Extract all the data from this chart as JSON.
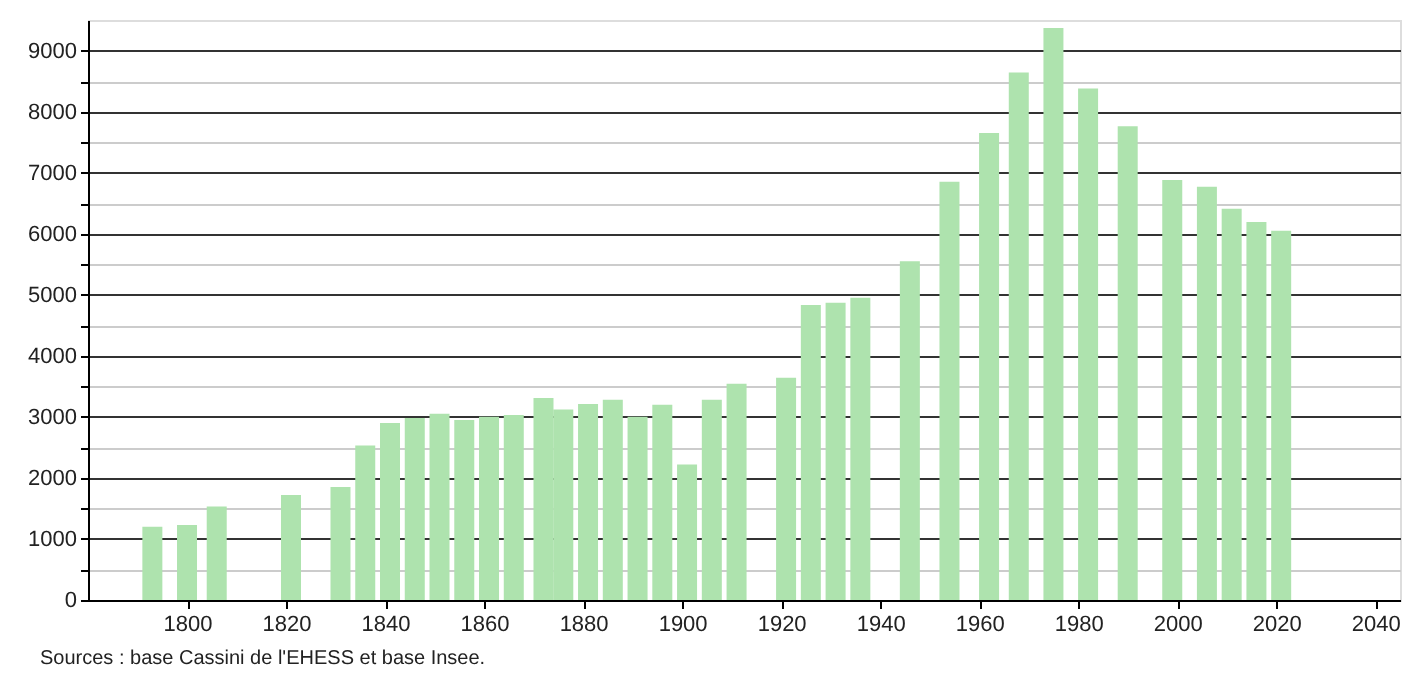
{
  "chart_data": {
    "type": "bar",
    "x": [
      1793,
      1800,
      1806,
      1821,
      1831,
      1836,
      1841,
      1846,
      1851,
      1856,
      1861,
      1866,
      1872,
      1876,
      1881,
      1886,
      1891,
      1896,
      1901,
      1906,
      1911,
      1921,
      1926,
      1931,
      1936,
      1946,
      1954,
      1962,
      1968,
      1975,
      1982,
      1990,
      1999,
      2006,
      2011,
      2016,
      2021
    ],
    "values": [
      1200,
      1230,
      1530,
      1720,
      1850,
      2530,
      2900,
      2980,
      3050,
      2950,
      3000,
      3030,
      3310,
      3120,
      3210,
      3280,
      3000,
      3200,
      2220,
      3280,
      3540,
      3640,
      4830,
      4870,
      4950,
      5550,
      6850,
      7650,
      8640,
      9370,
      8380,
      7760,
      6880,
      6770,
      6410,
      6190,
      6050
    ],
    "color": "#aee3ae",
    "xlim": [
      1780,
      2045
    ],
    "xticks": [
      1800,
      1820,
      1840,
      1860,
      1880,
      1900,
      1920,
      1940,
      1960,
      1980,
      2000,
      2020,
      2040
    ],
    "ylim": [
      0,
      9500
    ],
    "yticks": [
      0,
      {
        "value": 500,
        "label": null
      },
      1000,
      {
        "value": 1500,
        "label": null
      },
      2000,
      {
        "value": 2500,
        "label": null
      },
      3000,
      {
        "value": 3500,
        "label": null
      },
      4000,
      {
        "value": 4500,
        "label": null
      },
      5000,
      {
        "value": 5500,
        "label": null
      },
      6000,
      {
        "value": 6500,
        "label": null
      },
      7000,
      {
        "value": 7500,
        "label": null
      },
      8000,
      {
        "value": 8500,
        "label": null
      },
      9000
    ],
    "grid": "y",
    "annotations": [
      "Sources : base Cassini de l'EHESS et base Insee."
    ]
  }
}
